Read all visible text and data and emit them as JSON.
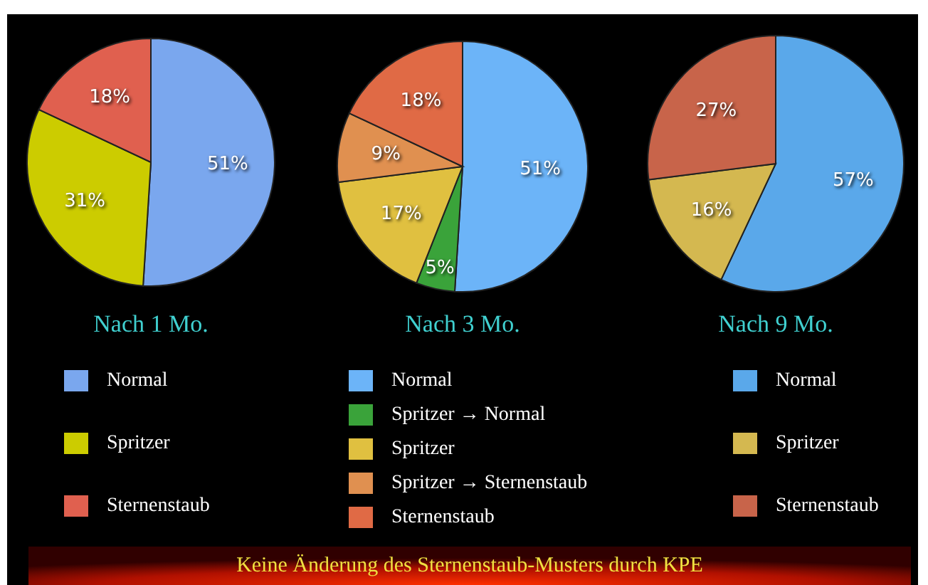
{
  "chart_data": [
    {
      "type": "pie",
      "title": "Nach 1 Mo.",
      "categories": [
        "Normal",
        "Spritzer",
        "Sternenstaub"
      ],
      "values": [
        51,
        31,
        18
      ],
      "value_labels": [
        "51%",
        "31%",
        "18%"
      ],
      "colors": [
        "#7aa7ee",
        "#cccc00",
        "#e0604f"
      ],
      "legend": "bottom"
    },
    {
      "type": "pie",
      "title": "Nach 3 Mo.",
      "categories": [
        "Normal",
        "Spritzer → Normal",
        "Spritzer",
        "Spritzer → Sternenstaub",
        "Sternenstaub"
      ],
      "values": [
        51,
        5,
        17,
        9,
        18
      ],
      "value_labels": [
        "51%",
        "5%",
        "17%",
        "9%",
        "18%"
      ],
      "colors": [
        "#6cb4f8",
        "#3aa33a",
        "#e0c040",
        "#e09050",
        "#e06a45"
      ],
      "legend": "bottom",
      "annotations": [
        "Keine Änderung des Sternenstaub-Musters  durch KPE"
      ]
    },
    {
      "type": "pie",
      "title": "Nach 9 Mo.",
      "categories": [
        "Normal",
        "Spritzer",
        "Sternenstaub"
      ],
      "values": [
        57,
        16,
        27
      ],
      "value_labels": [
        "57%",
        "16%",
        "27%"
      ],
      "colors": [
        "#5aa8ea",
        "#d4b850",
        "#c8644a"
      ],
      "legend": "bottom"
    }
  ]
}
